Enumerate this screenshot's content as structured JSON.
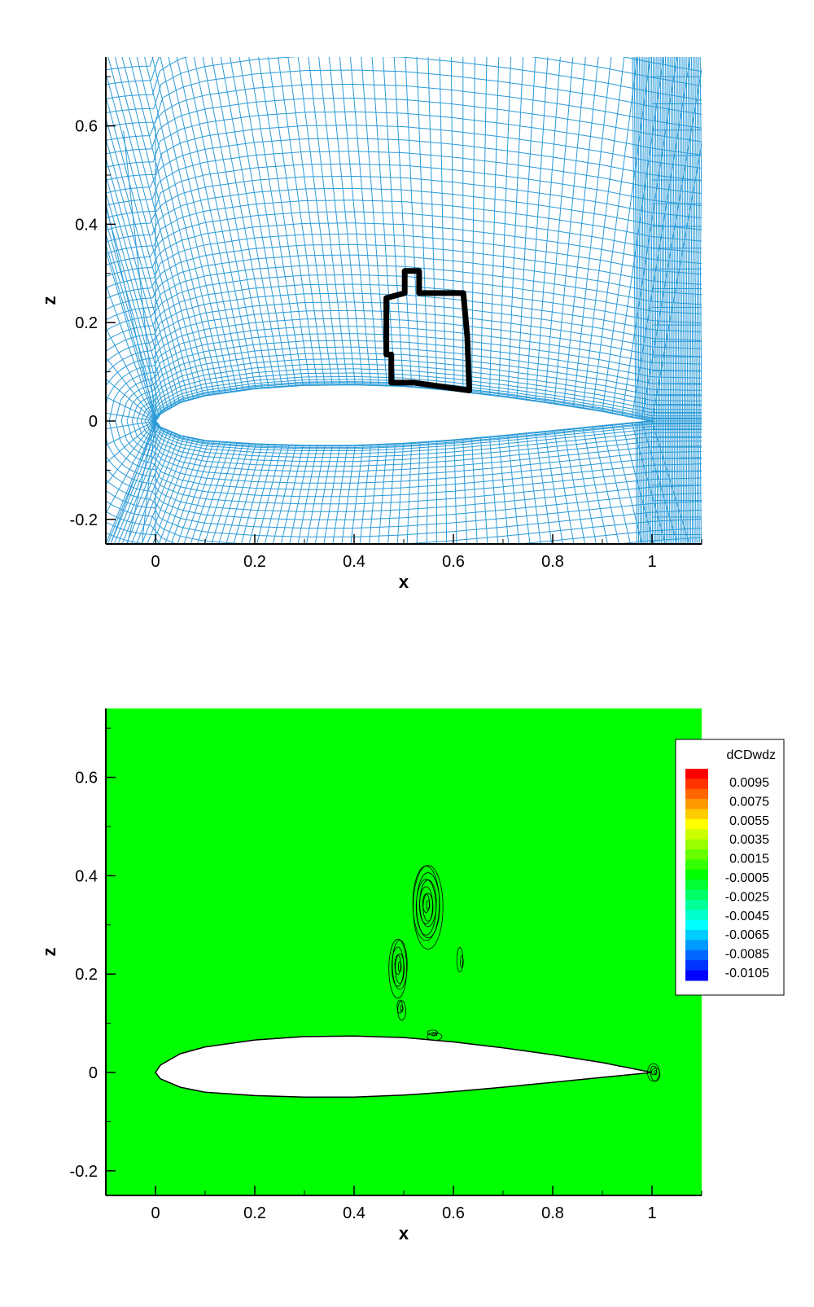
{
  "chart_data": [
    {
      "type": "scatter",
      "xlabel": "x",
      "ylabel": "z",
      "xlim": [
        -0.1,
        1.1
      ],
      "ylim": [
        -0.25,
        0.74
      ],
      "xticks": [
        0,
        0.2,
        0.4,
        0.6,
        0.8,
        1
      ],
      "xtick_labels": [
        "0",
        "0.2",
        "0.4",
        "0.6",
        "0.8",
        "1"
      ],
      "yticks": [
        -0.2,
        0,
        0.2,
        0.4,
        0.6
      ],
      "ytick_labels": [
        "-0.2",
        "0",
        "0.2",
        "0.4",
        "0.6"
      ],
      "grid_color": "#2b9bd8",
      "airfoil": {
        "upper": [
          [
            0,
            0
          ],
          [
            0.01,
            0.015
          ],
          [
            0.05,
            0.038
          ],
          [
            0.1,
            0.052
          ],
          [
            0.2,
            0.066
          ],
          [
            0.3,
            0.073
          ],
          [
            0.4,
            0.074
          ],
          [
            0.5,
            0.071
          ],
          [
            0.6,
            0.062
          ],
          [
            0.7,
            0.05
          ],
          [
            0.8,
            0.036
          ],
          [
            0.9,
            0.02
          ],
          [
            1.0,
            0.0
          ]
        ],
        "lower": [
          [
            0,
            0
          ],
          [
            0.01,
            -0.013
          ],
          [
            0.05,
            -0.03
          ],
          [
            0.1,
            -0.04
          ],
          [
            0.2,
            -0.047
          ],
          [
            0.3,
            -0.05
          ],
          [
            0.4,
            -0.05
          ],
          [
            0.5,
            -0.046
          ],
          [
            0.6,
            -0.039
          ],
          [
            0.7,
            -0.03
          ],
          [
            0.8,
            -0.02
          ],
          [
            0.9,
            -0.01
          ],
          [
            1.0,
            0.0
          ]
        ]
      },
      "region_outline": {
        "color": "#000000",
        "points": [
          [
            0.475,
            0.135
          ],
          [
            0.465,
            0.135
          ],
          [
            0.465,
            0.25
          ],
          [
            0.502,
            0.26
          ],
          [
            0.502,
            0.305
          ],
          [
            0.531,
            0.305
          ],
          [
            0.531,
            0.26
          ],
          [
            0.62,
            0.26
          ],
          [
            0.628,
            0.17
          ],
          [
            0.632,
            0.062
          ],
          [
            0.52,
            0.078
          ],
          [
            0.475,
            0.078
          ]
        ]
      }
    },
    {
      "type": "heatmap",
      "xlabel": "x",
      "ylabel": "z",
      "xlim": [
        -0.1,
        1.1
      ],
      "ylim": [
        -0.25,
        0.74
      ],
      "xticks": [
        0,
        0.2,
        0.4,
        0.6,
        0.8,
        1
      ],
      "xtick_labels": [
        "0",
        "0.2",
        "0.4",
        "0.6",
        "0.8",
        "1"
      ],
      "yticks": [
        -0.2,
        0,
        0.2,
        0.4,
        0.6
      ],
      "ytick_labels": [
        "-0.2",
        "0",
        "0.2",
        "0.4",
        "0.6"
      ],
      "background_color": "#00ff00",
      "legend": {
        "title": "dCDwdz",
        "placement": "top-right",
        "levels": [
          "0.0095",
          "0.0075",
          "0.0055",
          "0.0035",
          "0.0015",
          "-0.0005",
          "-0.0025",
          "-0.0045",
          "-0.0065",
          "-0.0085",
          "-0.0105"
        ],
        "colors": [
          "#ff0000",
          "#ff3300",
          "#ff6600",
          "#ff9900",
          "#ffcc00",
          "#ffff00",
          "#ccff00",
          "#99ff00",
          "#66ff00",
          "#33ff00",
          "#00ff00",
          "#00ff33",
          "#00ff66",
          "#00ff99",
          "#00ffcc",
          "#00ffff",
          "#00ccff",
          "#0099ff",
          "#0066ff",
          "#0033ff",
          "#0000ff"
        ]
      },
      "contour_clusters": [
        {
          "x": 0.547,
          "z": 0.34,
          "rx": 0.03,
          "rz": 0.085,
          "rings": 9
        },
        {
          "x": 0.49,
          "z": 0.215,
          "rx": 0.018,
          "rz": 0.06,
          "rings": 6
        },
        {
          "x": 0.494,
          "z": 0.13,
          "rx": 0.008,
          "rz": 0.02,
          "rings": 3
        },
        {
          "x": 0.56,
          "z": 0.077,
          "rx": 0.015,
          "rz": 0.008,
          "rings": 3
        },
        {
          "x": 0.615,
          "z": 0.225,
          "rx": 0.006,
          "rz": 0.025,
          "rings": 2
        },
        {
          "x": 1.005,
          "z": 0.0,
          "rx": 0.012,
          "rz": 0.018,
          "rings": 4
        }
      ]
    }
  ]
}
